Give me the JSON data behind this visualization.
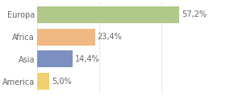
{
  "categories": [
    "America",
    "Asia",
    "Africa",
    "Europa"
  ],
  "values": [
    5.0,
    14.4,
    23.4,
    57.2
  ],
  "labels": [
    "5,0%",
    "14,4%",
    "23,4%",
    "57,2%"
  ],
  "bar_colors": [
    "#f0d070",
    "#7b90c0",
    "#f0b882",
    "#b0c888"
  ],
  "background_color": "#ffffff",
  "xlim": [
    0,
    75
  ],
  "text_color": "#666666",
  "label_fontsize": 7,
  "tick_fontsize": 7,
  "bar_height": 0.75
}
